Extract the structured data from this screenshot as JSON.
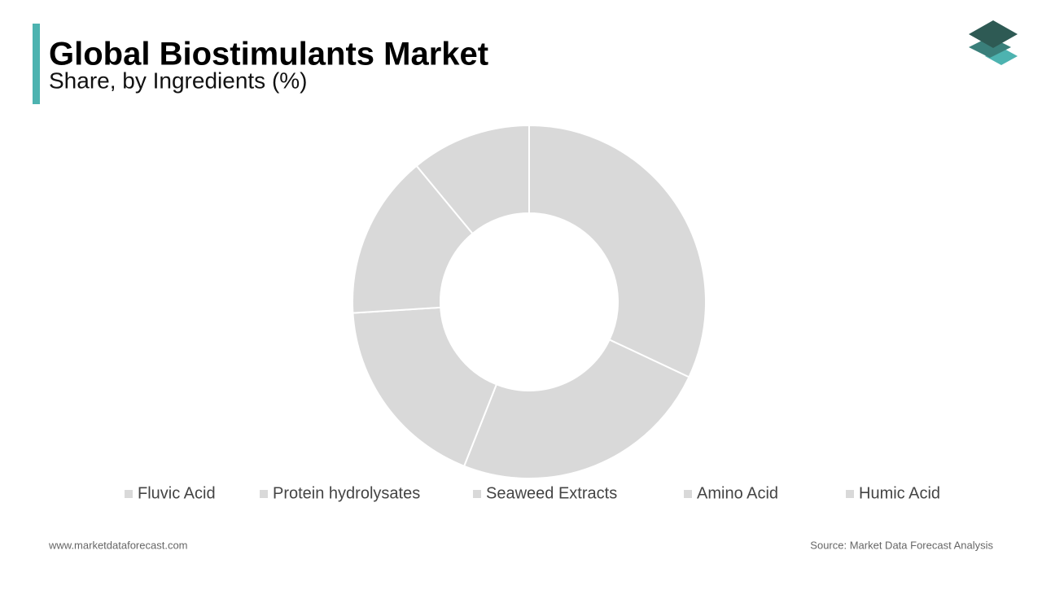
{
  "chart_data": {
    "type": "pie",
    "donut": true,
    "title": "Global Biostimulants Market",
    "subtitle": "Share, by Ingredients (%)",
    "categories": [
      "Fluvic Acid",
      "Protein hydrolysates",
      "Seaweed Extracts",
      "Amino Acid",
      "Humic Acid"
    ],
    "values": [
      32,
      24,
      18,
      15,
      11
    ],
    "colors": [
      "#d9d9d9",
      "#d9d9d9",
      "#d9d9d9",
      "#d9d9d9",
      "#d9d9d9"
    ]
  },
  "footer": {
    "website": "www.marketdataforecast.com",
    "source": "Source: Market Data Forecast Analysis"
  }
}
